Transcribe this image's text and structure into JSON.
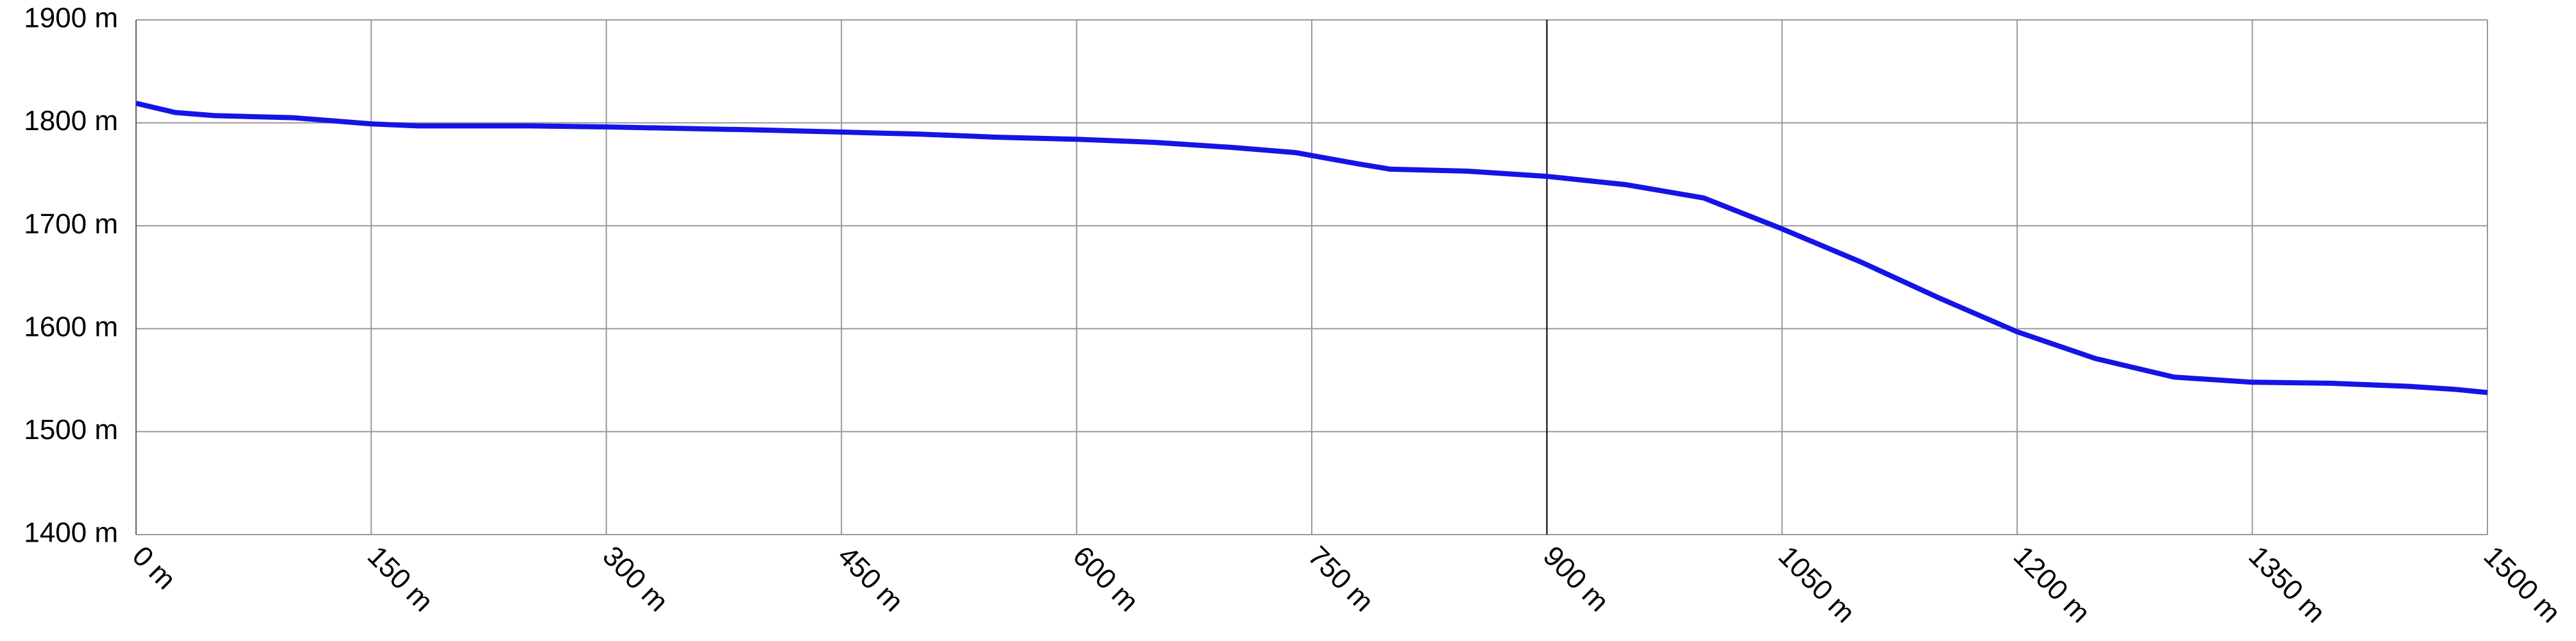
{
  "chart_data": {
    "type": "line",
    "x": [
      0,
      25,
      50,
      100,
      150,
      180,
      250,
      300,
      400,
      450,
      500,
      550,
      600,
      650,
      700,
      740,
      780,
      800,
      850,
      900,
      950,
      1000,
      1050,
      1100,
      1150,
      1200,
      1250,
      1300,
      1350,
      1400,
      1450,
      1480,
      1500
    ],
    "series": [
      {
        "color": "#1414e6",
        "values": [
          1819,
          1810,
          1807,
          1805,
          1799,
          1797,
          1797,
          1796,
          1793,
          1791,
          1789,
          1786,
          1784,
          1781,
          1776,
          1771,
          1760,
          1755,
          1753,
          1748,
          1740,
          1727,
          1697,
          1665,
          1630,
          1597,
          1571,
          1553,
          1548,
          1547,
          1544,
          1541,
          1538
        ]
      }
    ],
    "xlim": [
      0,
      1500
    ],
    "xticks": [
      {
        "value": 0,
        "label": "0 m"
      },
      {
        "value": 150,
        "label": "150 m"
      },
      {
        "value": 300,
        "label": "300 m"
      },
      {
        "value": 450,
        "label": "450 m"
      },
      {
        "value": 600,
        "label": "600 m"
      },
      {
        "value": 750,
        "label": "750 m"
      },
      {
        "value": 900,
        "label": "900 m"
      },
      {
        "value": 1050,
        "label": "1050 m"
      },
      {
        "value": 1200,
        "label": "1200 m"
      },
      {
        "value": 1350,
        "label": "1350 m"
      },
      {
        "value": 1500,
        "label": "1500 m"
      }
    ],
    "ylim": [
      1400,
      1900
    ],
    "yticks": [
      {
        "value": 1400,
        "label": "1400 m"
      },
      {
        "value": 1500,
        "label": "1500 m"
      },
      {
        "value": 1600,
        "label": "1600 m"
      },
      {
        "value": 1700,
        "label": "1700 m"
      },
      {
        "value": 1800,
        "label": "1800 m"
      },
      {
        "value": 1900,
        "label": "1900 m"
      }
    ],
    "grid": true,
    "marker_x": 900
  }
}
